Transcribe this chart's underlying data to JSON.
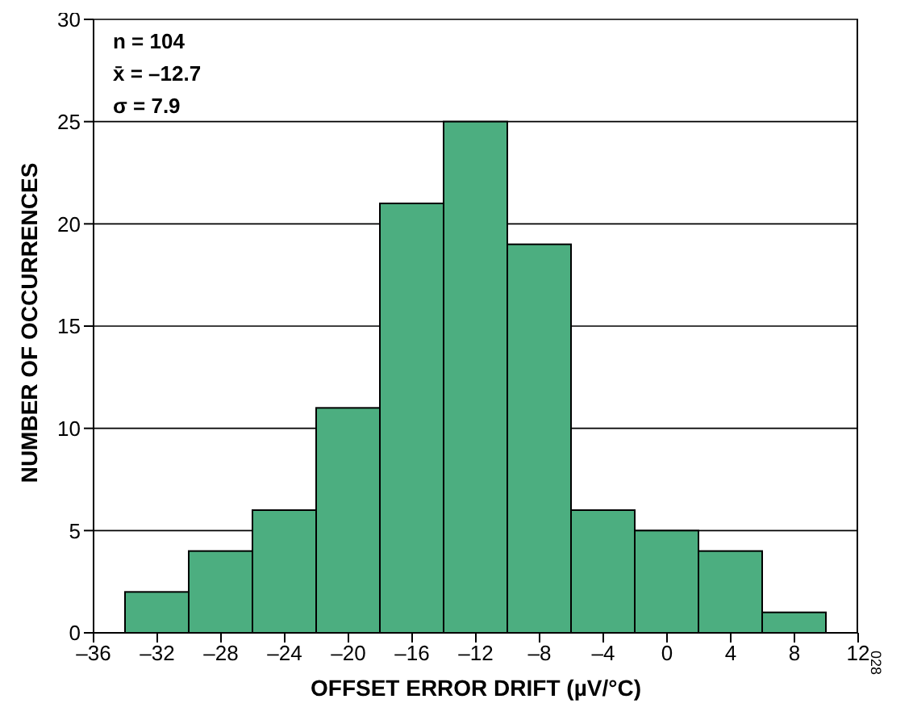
{
  "chart_data": {
    "type": "histogram",
    "xlabel": "OFFSET ERROR DRIFT (µV/°C)",
    "ylabel": "NUMBER OF OCCURRENCES",
    "bins": [
      -34,
      -30,
      -26,
      -22,
      -18,
      -14,
      -10,
      -6,
      -2,
      2,
      6,
      10
    ],
    "values": [
      2,
      4,
      6,
      11,
      21,
      25,
      19,
      6,
      5,
      4,
      1
    ],
    "color": "#4cae80",
    "xlim": [
      -36,
      12
    ],
    "xticks": [
      {
        "value": -36,
        "label": "–36"
      },
      {
        "value": -32,
        "label": "–32"
      },
      {
        "value": -28,
        "label": "–28"
      },
      {
        "value": -24,
        "label": "–24"
      },
      {
        "value": -20,
        "label": "–20"
      },
      {
        "value": -16,
        "label": "–16"
      },
      {
        "value": -12,
        "label": "–12"
      },
      {
        "value": -8,
        "label": "–8"
      },
      {
        "value": -4,
        "label": "–4"
      },
      0,
      4,
      8,
      12
    ],
    "ylim": [
      0,
      30
    ],
    "yticks": [
      0,
      5,
      10,
      15,
      20,
      25,
      30
    ],
    "grid": "y",
    "annotations": [
      "n = 104",
      "x̄ = –12.7",
      "σ = 7.9",
      "028"
    ]
  }
}
